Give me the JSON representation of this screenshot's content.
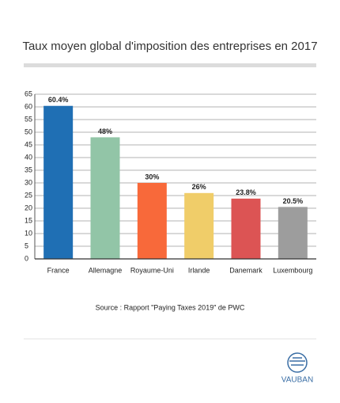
{
  "chart_data": {
    "type": "bar",
    "title": "Taux moyen global d'imposition des entreprises en 2017",
    "categories": [
      "France",
      "Allemagne",
      "Royaume-Uni",
      "Irlande",
      "Danemark",
      "Luxembourg"
    ],
    "values": [
      60.4,
      48,
      30,
      26,
      23.8,
      20.5
    ],
    "value_labels": [
      "60.4%",
      "48%",
      "30%",
      "26%",
      "23.8%",
      "20.5%"
    ],
    "colors": [
      "#1f6fb4",
      "#92c5a7",
      "#f8693a",
      "#f0cd69",
      "#dc5454",
      "#9d9d9d"
    ],
    "ylim": [
      0,
      65
    ],
    "yticks": [
      0,
      5,
      10,
      15,
      20,
      25,
      30,
      35,
      40,
      45,
      50,
      55,
      60,
      65
    ],
    "grid": true,
    "note": "Source : Rapport \"Paying Taxes 2019\" de PWC"
  },
  "logo": {
    "text": "VAUBAN"
  }
}
